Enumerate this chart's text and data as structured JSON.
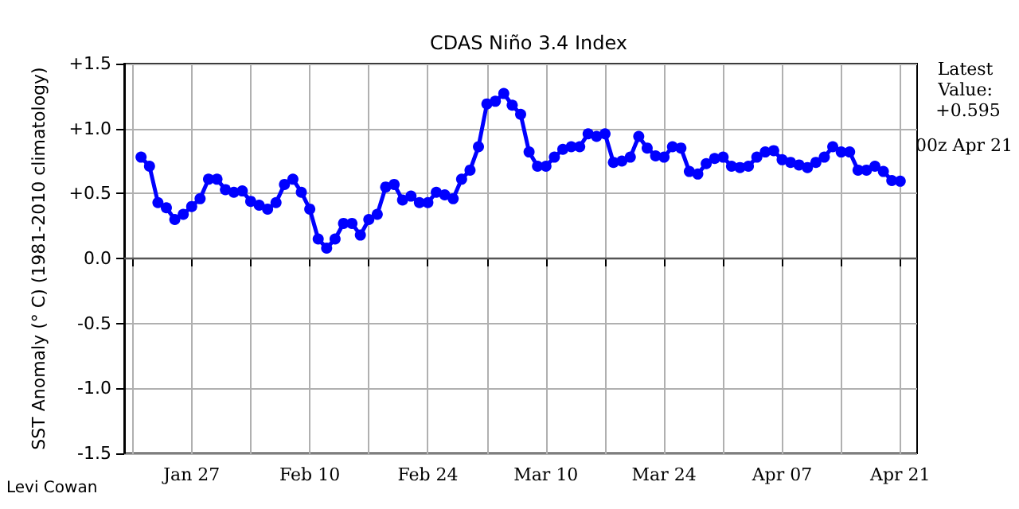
{
  "chart_data": {
    "type": "line",
    "title": "CDAS Niño 3.4 Index",
    "ylabel": "SST Anomaly (° C) (1981-2010 climatology)",
    "annotations": [
      "Latest Value: +0.595",
      "00z Apr 21",
      "Levi Cowan"
    ],
    "x": [
      "--01-21",
      "--01-22",
      "--01-23",
      "--01-24",
      "--01-25",
      "--01-26",
      "--01-27",
      "--01-28",
      "--01-29",
      "--01-30",
      "--01-31",
      "--02-01",
      "--02-02",
      "--02-03",
      "--02-04",
      "--02-05",
      "--02-06",
      "--02-07",
      "--02-08",
      "--02-09",
      "--02-10",
      "--02-11",
      "--02-12",
      "--02-13",
      "--02-14",
      "--02-15",
      "--02-16",
      "--02-17",
      "--02-18",
      "--02-19",
      "--02-20",
      "--02-21",
      "--02-22",
      "--02-23",
      "--02-24",
      "--02-25",
      "--02-26",
      "--02-27",
      "--02-28",
      "--03-01",
      "--03-02",
      "--03-03",
      "--03-04",
      "--03-05",
      "--03-06",
      "--03-07",
      "--03-08",
      "--03-09",
      "--03-10",
      "--03-11",
      "--03-12",
      "--03-13",
      "--03-14",
      "--03-15",
      "--03-16",
      "--03-17",
      "--03-18",
      "--03-19",
      "--03-20",
      "--03-21",
      "--03-22",
      "--03-23",
      "--03-24",
      "--03-25",
      "--03-26",
      "--03-27",
      "--03-28",
      "--03-29",
      "--03-30",
      "--03-31",
      "--04-01",
      "--04-02",
      "--04-03",
      "--04-04",
      "--04-05",
      "--04-06",
      "--04-07",
      "--04-08",
      "--04-09",
      "--04-10",
      "--04-11",
      "--04-12",
      "--04-13",
      "--04-14",
      "--04-15",
      "--04-16",
      "--04-17",
      "--04-18",
      "--04-19",
      "--04-20",
      "--04-21"
    ],
    "series": [
      {
        "color": "#0000ff",
        "values": [
          0.78,
          0.71,
          0.43,
          0.39,
          0.3,
          0.34,
          0.4,
          0.46,
          0.61,
          0.61,
          0.53,
          0.51,
          0.52,
          0.44,
          0.41,
          0.38,
          0.43,
          0.57,
          0.61,
          0.51,
          0.38,
          0.15,
          0.08,
          0.15,
          0.27,
          0.27,
          0.18,
          0.3,
          0.34,
          0.55,
          0.57,
          0.45,
          0.48,
          0.43,
          0.43,
          0.51,
          0.49,
          0.46,
          0.61,
          0.68,
          0.86,
          1.19,
          1.21,
          1.27,
          1.18,
          1.11,
          0.82,
          0.71,
          0.71,
          0.78,
          0.84,
          0.86,
          0.86,
          0.96,
          0.94,
          0.96,
          0.74,
          0.75,
          0.78,
          0.94,
          0.85,
          0.79,
          0.78,
          0.86,
          0.85,
          0.67,
          0.65,
          0.73,
          0.77,
          0.78,
          0.71,
          0.7,
          0.71,
          0.78,
          0.82,
          0.83,
          0.76,
          0.74,
          0.72,
          0.7,
          0.74,
          0.78,
          0.86,
          0.82,
          0.82,
          0.68,
          0.68,
          0.71,
          0.67,
          0.6,
          0.595
        ]
      }
    ],
    "xlim": [
      "--01-19",
      "--04-23"
    ],
    "xticks": [
      {
        "value": "--01-20",
        "label": null
      },
      {
        "value": "--01-27",
        "label": "Jan 27"
      },
      {
        "value": "--02-03",
        "label": null
      },
      {
        "value": "--02-10",
        "label": "Feb 10"
      },
      {
        "value": "--02-17",
        "label": null
      },
      {
        "value": "--02-24",
        "label": "Feb 24"
      },
      {
        "value": "--03-03",
        "label": null
      },
      {
        "value": "--03-10",
        "label": "Mar 10"
      },
      {
        "value": "--03-17",
        "label": null
      },
      {
        "value": "--03-24",
        "label": "Mar 24"
      },
      {
        "value": "--03-31",
        "label": null
      },
      {
        "value": "--04-07",
        "label": "Apr 07"
      },
      {
        "value": "--04-14",
        "label": null
      },
      {
        "value": "--04-21",
        "label": "Apr 21"
      }
    ],
    "ylim": [
      -1.5,
      1.5
    ],
    "yticks": [
      {
        "value": -1.5,
        "label": "-1.5"
      },
      {
        "value": -1.0,
        "label": "-1.0"
      },
      {
        "value": -0.5,
        "label": "-0.5"
      },
      {
        "value": 0,
        "label": "0.0"
      },
      {
        "value": 0.5,
        "label": "+0.5"
      },
      {
        "value": 1.0,
        "label": "+1.0"
      },
      {
        "value": 1.5,
        "label": "+1.5"
      }
    ],
    "ref_lines": [
      {
        "axis": "y",
        "value": 0,
        "color": "#555555"
      }
    ],
    "grid": true,
    "marker": "circle",
    "line_style": "solid"
  }
}
